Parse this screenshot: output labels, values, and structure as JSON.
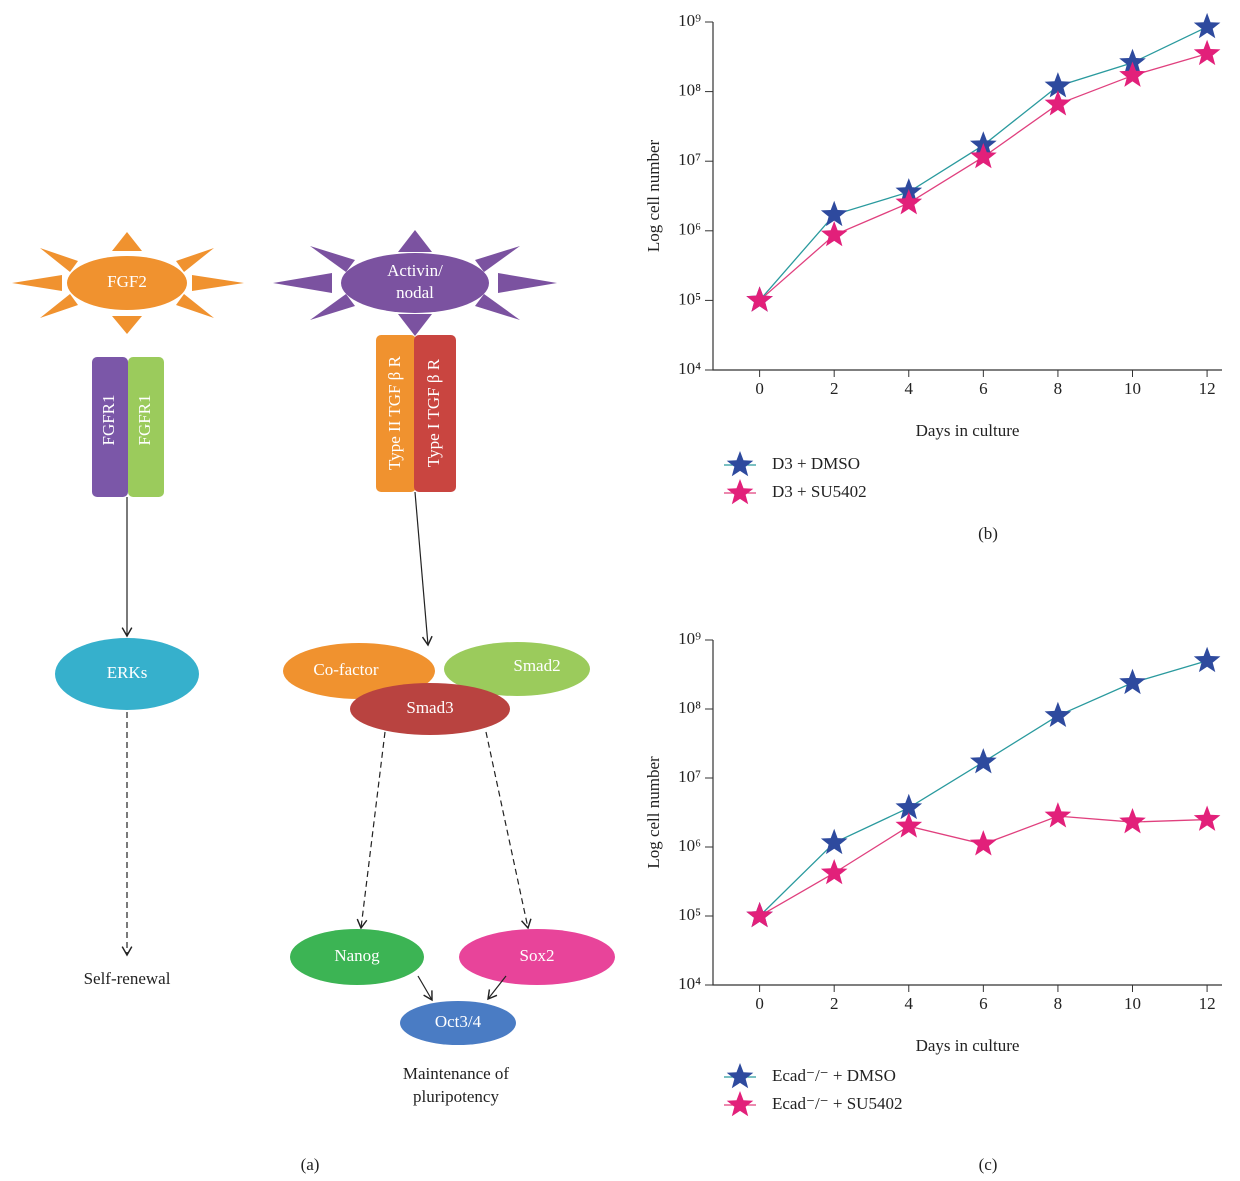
{
  "diagram": {
    "ligands": [
      {
        "label": "FGF2"
      },
      {
        "label": [
          "Activin/",
          "nodal"
        ]
      }
    ],
    "receptors": [
      "FGFR1",
      "FGFR1",
      "Type II TGF β R",
      "Type I TGF β R"
    ],
    "nodes": [
      "ERKs",
      "Co-factor",
      "Smad2",
      "Smad3",
      "Nanog",
      "Sox2",
      "Oct3/4"
    ],
    "outcomes": [
      [
        "Self-renewal"
      ],
      [
        "Maintenance of",
        "pluripotency"
      ]
    ],
    "panel_label": "(a)"
  },
  "chart_data": [
    {
      "type": "line",
      "panel_label": "(b)",
      "ylabel": "Log cell number",
      "xlabel": "Days in culture",
      "x": [
        0,
        2,
        4,
        6,
        8,
        10,
        12
      ],
      "xlim": [
        -1.25,
        12.4
      ],
      "xticks": [
        0,
        2,
        4,
        6,
        8,
        10,
        12
      ],
      "ylog": true,
      "ylim": [
        10000,
        1000000000
      ],
      "yticks": [
        {
          "value": 10000,
          "label": "10⁴"
        },
        {
          "value": 100000,
          "label": "10⁵"
        },
        {
          "value": 1000000,
          "label": "10⁶"
        },
        {
          "value": 10000000,
          "label": "10⁷"
        },
        {
          "value": 100000000,
          "label": "10⁸"
        },
        {
          "value": 1000000000,
          "label": "10⁹"
        }
      ],
      "series": [
        {
          "name": "D3 + DMSO",
          "color": "#2e4a9e",
          "line_color": "#2a9a9e",
          "values": [
            100000,
            1700000,
            3600000,
            17000000,
            120000000,
            260000000,
            850000000
          ]
        },
        {
          "name": "D3 + SU5402",
          "color": "#e2207a",
          "line_color": "#e0407e",
          "values": [
            100000,
            870000,
            2500000,
            11500000,
            66000000,
            170000000,
            350000000
          ]
        }
      ]
    },
    {
      "type": "line",
      "panel_label": "(c)",
      "ylabel": "Log cell number",
      "xlabel": "Days in culture",
      "x": [
        0,
        2,
        4,
        6,
        8,
        10,
        12
      ],
      "xlim": [
        -1.25,
        12.4
      ],
      "xticks": [
        0,
        2,
        4,
        6,
        8,
        10,
        12
      ],
      "ylog": true,
      "ylim": [
        10000,
        1000000000
      ],
      "yticks": [
        {
          "value": 10000,
          "label": "10⁴"
        },
        {
          "value": 100000,
          "label": "10⁵"
        },
        {
          "value": 1000000,
          "label": "10⁶"
        },
        {
          "value": 10000000,
          "label": "10⁷"
        },
        {
          "value": 100000000,
          "label": "10⁸"
        },
        {
          "value": 1000000000,
          "label": "10⁹"
        }
      ],
      "series": [
        {
          "name": "Ecad⁻/⁻ + DMSO",
          "color": "#2e4a9e",
          "line_color": "#2a9a9e",
          "values": [
            100000,
            1150000,
            3700000,
            17000000,
            80000000,
            240000000,
            500000000
          ]
        },
        {
          "name": "Ecad⁻/⁻ + SU5402",
          "color": "#e2207a",
          "line_color": "#e0407e",
          "values": [
            100000,
            420000,
            2000000,
            1100000,
            2800000,
            2300000,
            2500000
          ]
        }
      ]
    }
  ]
}
